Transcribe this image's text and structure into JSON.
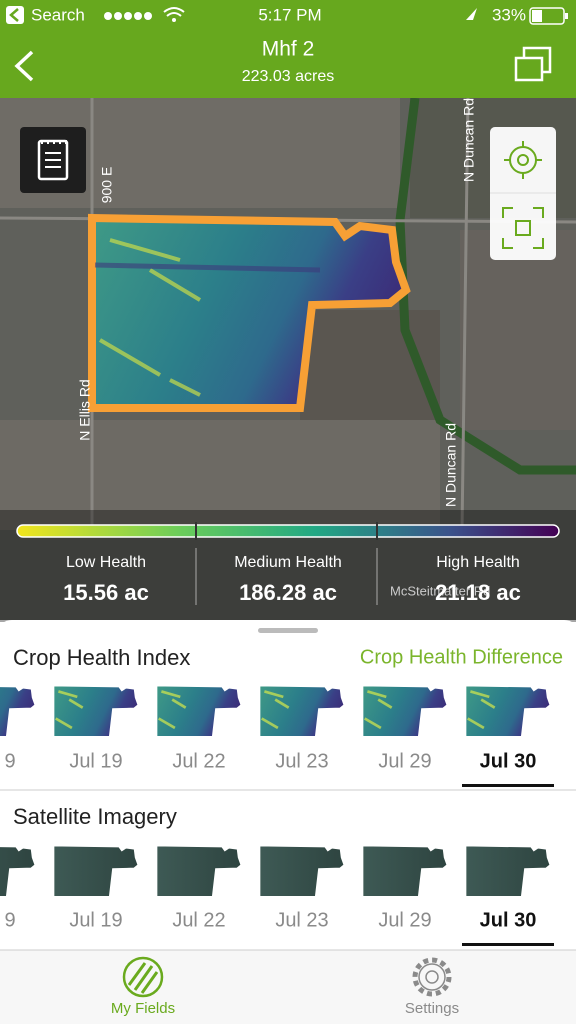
{
  "status_bar": {
    "carrier": "Search",
    "time": "5:17 PM",
    "battery": "33%"
  },
  "header": {
    "title": "Mhf 2",
    "subtitle": "223.03 acres"
  },
  "map": {
    "road_labels": [
      "900 E",
      "N Duncan Rd",
      "N Ellis Rd",
      "N Duncan Rd",
      "McSteitmatter Rd"
    ]
  },
  "legend": {
    "items": [
      {
        "label": "Low Health",
        "value": "15.56  ac"
      },
      {
        "label": "Medium Health",
        "value": "186.28 ac"
      },
      {
        "label": "High Health",
        "value": "21.18 ac"
      }
    ]
  },
  "crop_health": {
    "title": "Crop Health Index",
    "link": "Crop Health Difference",
    "dates": [
      "9",
      "Jul 19",
      "Jul 22",
      "Jul 23",
      "Jul 29",
      "Jul 30"
    ],
    "selected": 5
  },
  "satellite": {
    "title": "Satellite Imagery",
    "dates": [
      "9",
      "Jul 19",
      "Jul 22",
      "Jul 23",
      "Jul 29",
      "Jul 30"
    ],
    "selected": 5
  },
  "tab_bar": {
    "tabs": [
      {
        "label": "My Fields",
        "active": true
      },
      {
        "label": "Settings",
        "active": false
      }
    ]
  }
}
